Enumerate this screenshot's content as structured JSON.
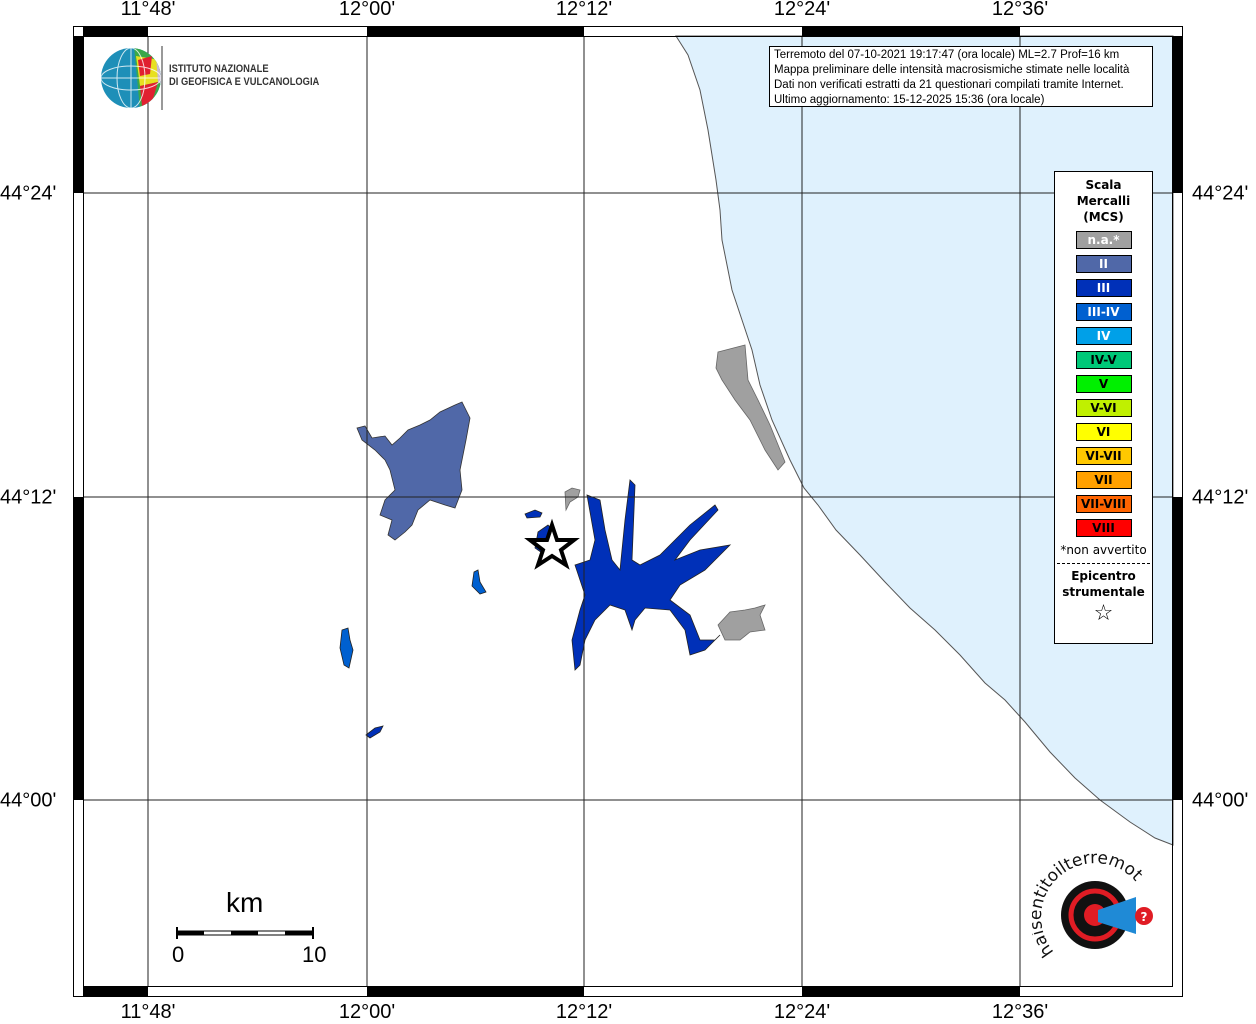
{
  "map": {
    "lon_ticks": [
      "11°48'",
      "12°00'",
      "12°12'",
      "12°24'",
      "12°36'"
    ],
    "lat_ticks": [
      "44°24'",
      "44°12'",
      "44°00'"
    ],
    "colors": {
      "sea": "#dff1fd",
      "land": "#ffffff",
      "not_felt": "#a0a0a0",
      "II": "#5068a8",
      "III": "#0030b8",
      "III-IV": "#0060d0"
    },
    "epicenter_icon": "star-icon"
  },
  "info_box": {
    "lines": [
      "Terremoto del 07-10-2021 19:17:47 (ora locale) ML=2.7 Prof=16 km",
      "Mappa preliminare delle intensità macrosismiche stimate nelle località",
      "Dati non verificati estratti da 21 questionari compilati tramite Internet.",
      "Ultimo aggiornamento: 15-12-2025 15:36 (ora locale)"
    ]
  },
  "legend": {
    "title": [
      "Scala",
      "Mercalli",
      "(MCS)"
    ],
    "items": [
      {
        "label": "n.a.*",
        "color": "#a0a0a0",
        "text_color": "#ffffff"
      },
      {
        "label": "II",
        "color": "#5068a8",
        "text_color": "#ffffff"
      },
      {
        "label": "III",
        "color": "#0030b8",
        "text_color": "#ffffff"
      },
      {
        "label": "III-IV",
        "color": "#0060d0",
        "text_color": "#ffffff"
      },
      {
        "label": "IV",
        "color": "#00a0e8",
        "text_color": "#ffffff"
      },
      {
        "label": "IV-V",
        "color": "#00c878",
        "text_color": "#000000"
      },
      {
        "label": "V",
        "color": "#00f000",
        "text_color": "#000000"
      },
      {
        "label": "V-VI",
        "color": "#c0f000",
        "text_color": "#000000"
      },
      {
        "label": "VI",
        "color": "#ffff00",
        "text_color": "#000000"
      },
      {
        "label": "VI-VII",
        "color": "#ffc800",
        "text_color": "#000000"
      },
      {
        "label": "VII",
        "color": "#ffa000",
        "text_color": "#000000"
      },
      {
        "label": "VII-VIII",
        "color": "#ff6400",
        "text_color": "#000000"
      },
      {
        "label": "VIII",
        "color": "#ff0000",
        "text_color": "#000000"
      }
    ],
    "note": "*non avvertito",
    "epicenter_label": [
      "Epicentro",
      "strumentale"
    ],
    "epicenter_symbol": "☆"
  },
  "logos": {
    "ingv": "ISTITUTO NAZIONALE DI GEOFISICA E VULCANOLOGIA",
    "ingv_lines": [
      "ISTITUTO NAZIONALE",
      "DI GEOFISICA E VULCANOLOGIA"
    ],
    "hsit": "www.haisentitoilterremoto.it"
  },
  "scale_bar": {
    "unit": "km",
    "start": "0",
    "end": "10"
  }
}
